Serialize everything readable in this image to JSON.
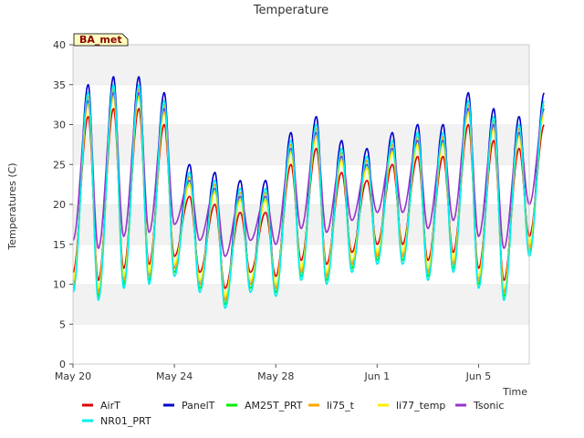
{
  "chart_data": {
    "type": "line",
    "title": "Temperature",
    "xlabel": "Time",
    "ylabel": "Temperatures (C)",
    "badge": "BA_met",
    "ylim": [
      0,
      40
    ],
    "yticks": [
      0,
      5,
      10,
      15,
      20,
      25,
      30,
      35,
      40
    ],
    "xlim": [
      "May 20",
      "Jun 7"
    ],
    "xticks": [
      {
        "label": "May 20",
        "day": 0
      },
      {
        "label": "May 24",
        "day": 4
      },
      {
        "label": "May 28",
        "day": 8
      },
      {
        "label": "Jun 1",
        "day": 12
      },
      {
        "label": "Jun 5",
        "day": 16
      }
    ],
    "grid": "horizontal bands",
    "legend_position": "bottom",
    "daily_max": [
      34,
      35,
      35,
      33,
      24,
      23,
      22,
      22,
      28,
      30,
      27,
      26,
      28,
      29,
      29,
      33,
      31,
      30,
      33
    ],
    "daily_min": [
      9.5,
      8.5,
      10,
      10.5,
      11.5,
      9.5,
      7.5,
      9.5,
      9,
      11,
      10.5,
      12,
      13,
      13,
      11,
      12,
      10,
      8.5,
      14
    ],
    "series": [
      {
        "name": "AirT",
        "color": "#dd0000",
        "max_offset": -3,
        "min_offset": 2
      },
      {
        "name": "PanelT",
        "color": "#0000cc",
        "max_offset": 1,
        "min_offset": 0.5
      },
      {
        "name": "AM25T_PRT",
        "color": "#00ee00",
        "max_offset": -1,
        "min_offset": 0
      },
      {
        "name": "li75_t",
        "color": "#ffa500",
        "max_offset": -0.5,
        "min_offset": 0.5
      },
      {
        "name": "li77_temp",
        "color": "#ffee00",
        "max_offset": -1.5,
        "min_offset": 1
      },
      {
        "name": "Tsonic",
        "color": "#9933cc",
        "max_offset": -1,
        "min_offset": 6
      },
      {
        "name": "NR01_PRT",
        "color": "#00eeee",
        "max_offset": 0,
        "min_offset": -0.5
      }
    ]
  }
}
